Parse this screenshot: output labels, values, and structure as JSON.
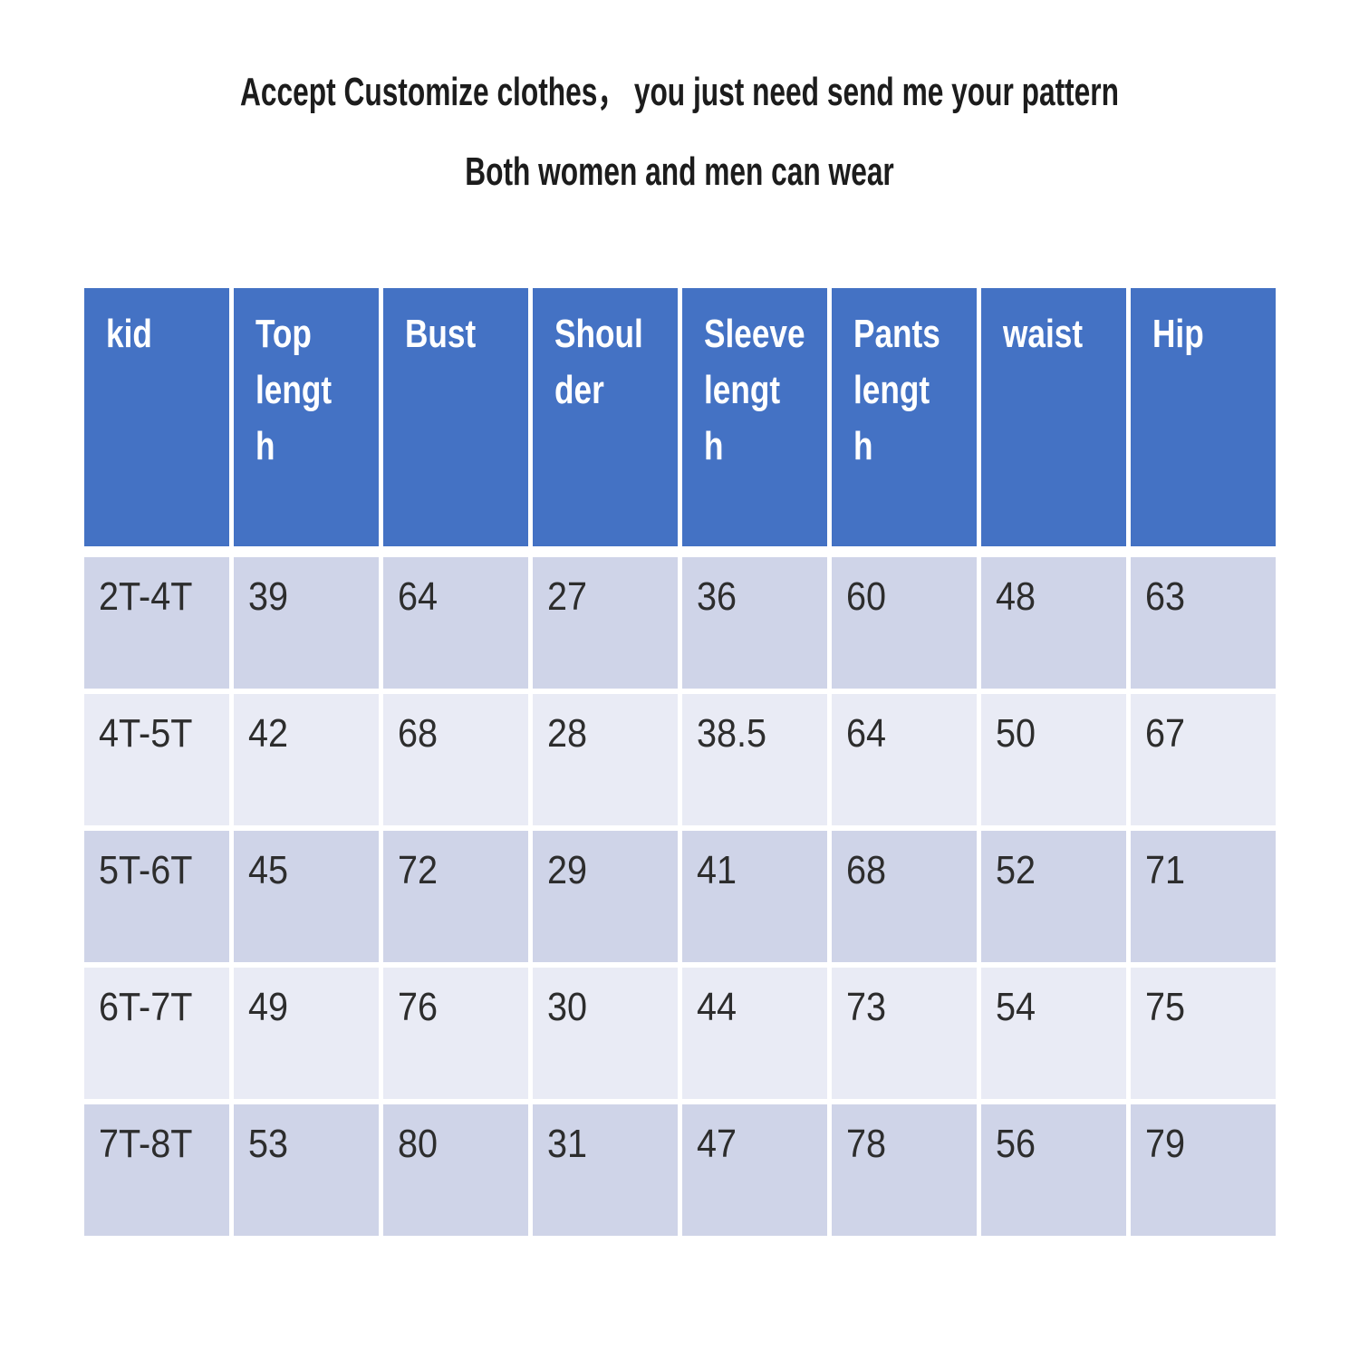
{
  "title": {
    "line1": "Accept Customize clothes， you just need send me your pattern",
    "line2": "Both women and men can wear"
  },
  "colors": {
    "header_bg": "#4472c4",
    "header_text": "#ffffff",
    "row_dark": "#cfd4e8",
    "row_light": "#e9ebf5",
    "body_text": "#2d2d2d",
    "title_text": "#1c1c1c",
    "page_bg": "#ffffff"
  },
  "size_table": {
    "headers": [
      "kid",
      "Top\nlengt\nh",
      "Bust",
      "Shoul\nder",
      "Sleeve\nlengt\nh",
      "Pants\nlengt\nh",
      "waist",
      "Hip"
    ],
    "rows": [
      [
        "2T-4T",
        "39",
        "64",
        "27",
        "36",
        "60",
        "48",
        "63"
      ],
      [
        "4T-5T",
        "42",
        "68",
        "28",
        "38.5",
        "64",
        "50",
        "67"
      ],
      [
        "5T-6T",
        "45",
        "72",
        "29",
        "41",
        "68",
        "52",
        "71"
      ],
      [
        "6T-7T",
        "49",
        "76",
        "30",
        "44",
        "73",
        "54",
        "75"
      ],
      [
        "7T-8T",
        "53",
        "80",
        "31",
        "47",
        "78",
        "56",
        "79"
      ]
    ]
  }
}
